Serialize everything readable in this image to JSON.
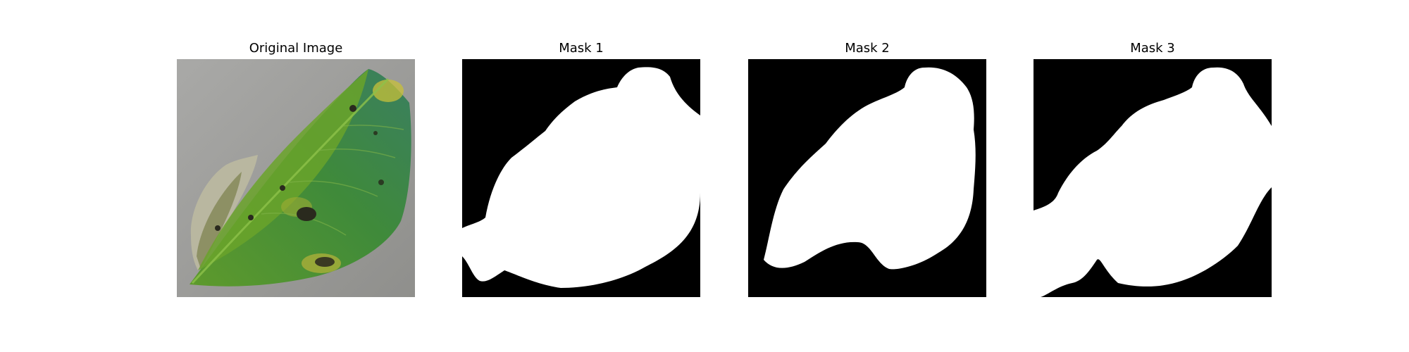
{
  "figure": {
    "panels": [
      {
        "title": "Original Image",
        "kind": "photo",
        "subject": "leaf"
      },
      {
        "title": "Mask 1",
        "kind": "binary-mask"
      },
      {
        "title": "Mask 2",
        "kind": "binary-mask"
      },
      {
        "title": "Mask 3",
        "kind": "binary-mask"
      }
    ],
    "colors": {
      "mask_background": "#000000",
      "mask_foreground": "#ffffff",
      "photo_background": "#9a9a98",
      "leaf_green": "#4f8a2c",
      "leaf_teal": "#3b7f5e",
      "leaf_yellow": "#b5b83c",
      "lesion_dark": "#2a2a1e"
    }
  }
}
